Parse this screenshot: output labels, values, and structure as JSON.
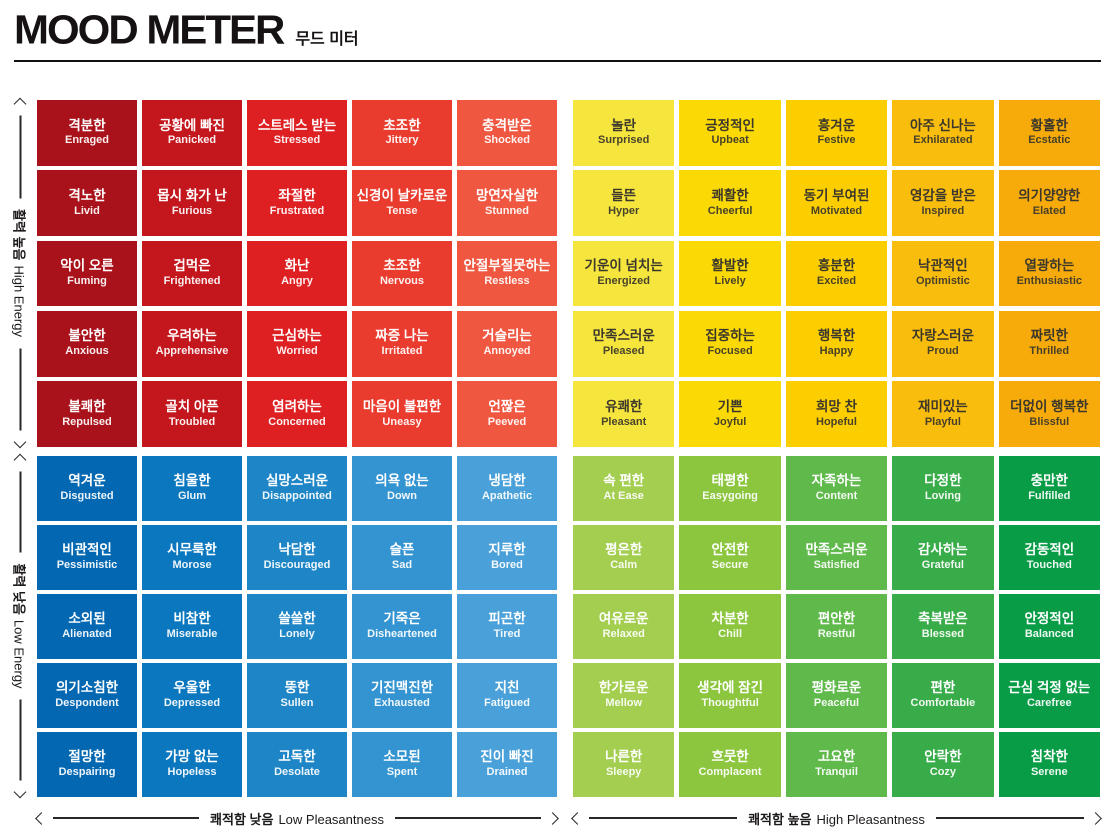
{
  "title": "MOOD METER",
  "subtitle": "무드 미터",
  "axes": {
    "left_top": {
      "kr": "활력 높음",
      "en": "High Energy"
    },
    "left_bottom": {
      "kr": "활력 낮음",
      "en": "Low Energy"
    },
    "bottom_left": {
      "kr": "쾌적함 낮음",
      "en": "Low Pleasantness"
    },
    "bottom_right": {
      "kr": "쾌적함 높음",
      "en": "High Pleasantness"
    }
  },
  "chart_data": {
    "type": "heatmap",
    "title": "MOOD METER 무드 미터",
    "layout": "10x10 mood grid split into four 5x5 quadrants; x-axis = pleasantness (low left, high right), y-axis = energy (high top, low bottom)",
    "quadrants": [
      {
        "id": "high-energy-low-pleasantness",
        "position": "top-left",
        "column_colors": [
          "#A9121B",
          "#C3161D",
          "#DE2023",
          "#E93B2E",
          "#EF5740"
        ],
        "text_color": "#FFFFFF",
        "cells": [
          {
            "kr": "격분한",
            "en": "Enraged"
          },
          {
            "kr": "공황에 빠진",
            "en": "Panicked"
          },
          {
            "kr": "스트레스 받는",
            "en": "Stressed"
          },
          {
            "kr": "초조한",
            "en": "Jittery"
          },
          {
            "kr": "충격받은",
            "en": "Shocked"
          },
          {
            "kr": "격노한",
            "en": "Livid"
          },
          {
            "kr": "몹시 화가 난",
            "en": "Furious"
          },
          {
            "kr": "좌절한",
            "en": "Frustrated"
          },
          {
            "kr": "신경이 날카로운",
            "en": "Tense"
          },
          {
            "kr": "망연자실한",
            "en": "Stunned"
          },
          {
            "kr": "악이 오른",
            "en": "Fuming"
          },
          {
            "kr": "겁먹은",
            "en": "Frightened"
          },
          {
            "kr": "화난",
            "en": "Angry"
          },
          {
            "kr": "초조한",
            "en": "Nervous"
          },
          {
            "kr": "안절부절못하는",
            "en": "Restless"
          },
          {
            "kr": "불안한",
            "en": "Anxious"
          },
          {
            "kr": "우려하는",
            "en": "Apprehensive"
          },
          {
            "kr": "근심하는",
            "en": "Worried"
          },
          {
            "kr": "짜증 나는",
            "en": "Irritated"
          },
          {
            "kr": "거슬리는",
            "en": "Annoyed"
          },
          {
            "kr": "불쾌한",
            "en": "Repulsed"
          },
          {
            "kr": "골치 아픈",
            "en": "Troubled"
          },
          {
            "kr": "염려하는",
            "en": "Concerned"
          },
          {
            "kr": "마음이 불편한",
            "en": "Uneasy"
          },
          {
            "kr": "언짢은",
            "en": "Peeved"
          }
        ]
      },
      {
        "id": "high-energy-high-pleasantness",
        "position": "top-right",
        "column_colors": [
          "#F6E53C",
          "#FBD905",
          "#FCCE00",
          "#F9BD0D",
          "#F6AB0A"
        ],
        "text_color": "#3B372C",
        "cells": [
          {
            "kr": "놀란",
            "en": "Surprised"
          },
          {
            "kr": "긍정적인",
            "en": "Upbeat"
          },
          {
            "kr": "흥겨운",
            "en": "Festive"
          },
          {
            "kr": "아주 신나는",
            "en": "Exhilarated"
          },
          {
            "kr": "황홀한",
            "en": "Ecstatic"
          },
          {
            "kr": "들뜬",
            "en": "Hyper"
          },
          {
            "kr": "쾌활한",
            "en": "Cheerful"
          },
          {
            "kr": "동기 부여된",
            "en": "Motivated"
          },
          {
            "kr": "영감을 받은",
            "en": "Inspired"
          },
          {
            "kr": "의기양양한",
            "en": "Elated"
          },
          {
            "kr": "기운이 넘치는",
            "en": "Energized"
          },
          {
            "kr": "활발한",
            "en": "Lively"
          },
          {
            "kr": "흥분한",
            "en": "Excited"
          },
          {
            "kr": "낙관적인",
            "en": "Optimistic"
          },
          {
            "kr": "열광하는",
            "en": "Enthusiastic"
          },
          {
            "kr": "만족스러운",
            "en": "Pleased"
          },
          {
            "kr": "집중하는",
            "en": "Focused"
          },
          {
            "kr": "행복한",
            "en": "Happy"
          },
          {
            "kr": "자랑스러운",
            "en": "Proud"
          },
          {
            "kr": "짜릿한",
            "en": "Thrilled"
          },
          {
            "kr": "유쾌한",
            "en": "Pleasant"
          },
          {
            "kr": "기쁜",
            "en": "Joyful"
          },
          {
            "kr": "희망 찬",
            "en": "Hopeful"
          },
          {
            "kr": "재미있는",
            "en": "Playful"
          },
          {
            "kr": "더없이 행복한",
            "en": "Blissful"
          }
        ]
      },
      {
        "id": "low-energy-low-pleasantness",
        "position": "bottom-left",
        "column_colors": [
          "#0368B1",
          "#0A77BE",
          "#1E86C7",
          "#3494D1",
          "#4AA1D9"
        ],
        "text_color": "#FFFFFF",
        "cells": [
          {
            "kr": "역겨운",
            "en": "Disgusted"
          },
          {
            "kr": "침울한",
            "en": "Glum"
          },
          {
            "kr": "실망스러운",
            "en": "Disappointed"
          },
          {
            "kr": "의욕 없는",
            "en": "Down"
          },
          {
            "kr": "냉담한",
            "en": "Apathetic"
          },
          {
            "kr": "비관적인",
            "en": "Pessimistic"
          },
          {
            "kr": "시무룩한",
            "en": "Morose"
          },
          {
            "kr": "낙담한",
            "en": "Discouraged"
          },
          {
            "kr": "슬픈",
            "en": "Sad"
          },
          {
            "kr": "지루한",
            "en": "Bored"
          },
          {
            "kr": "소외된",
            "en": "Alienated"
          },
          {
            "kr": "비참한",
            "en": "Miserable"
          },
          {
            "kr": "쓸쓸한",
            "en": "Lonely"
          },
          {
            "kr": "기죽은",
            "en": "Disheartened"
          },
          {
            "kr": "피곤한",
            "en": "Tired"
          },
          {
            "kr": "의기소침한",
            "en": "Despondent"
          },
          {
            "kr": "우울한",
            "en": "Depressed"
          },
          {
            "kr": "뚱한",
            "en": "Sullen"
          },
          {
            "kr": "기진맥진한",
            "en": "Exhausted"
          },
          {
            "kr": "지친",
            "en": "Fatigued"
          },
          {
            "kr": "절망한",
            "en": "Despairing"
          },
          {
            "kr": "가망 없는",
            "en": "Hopeless"
          },
          {
            "kr": "고독한",
            "en": "Desolate"
          },
          {
            "kr": "소모된",
            "en": "Spent"
          },
          {
            "kr": "진이 빠진",
            "en": "Drained"
          }
        ]
      },
      {
        "id": "low-energy-high-pleasantness",
        "position": "bottom-right",
        "column_colors": [
          "#A3CE4F",
          "#8CC63F",
          "#5FB94B",
          "#38AC49",
          "#089C47"
        ],
        "text_color": "#FFFFFF",
        "cells": [
          {
            "kr": "속 편한",
            "en": "At Ease"
          },
          {
            "kr": "태평한",
            "en": "Easygoing"
          },
          {
            "kr": "자족하는",
            "en": "Content"
          },
          {
            "kr": "다정한",
            "en": "Loving"
          },
          {
            "kr": "충만한",
            "en": "Fulfilled"
          },
          {
            "kr": "평온한",
            "en": "Calm"
          },
          {
            "kr": "안전한",
            "en": "Secure"
          },
          {
            "kr": "만족스러운",
            "en": "Satisfied"
          },
          {
            "kr": "감사하는",
            "en": "Grateful"
          },
          {
            "kr": "감동적인",
            "en": "Touched"
          },
          {
            "kr": "여유로운",
            "en": "Relaxed"
          },
          {
            "kr": "차분한",
            "en": "Chill"
          },
          {
            "kr": "편안한",
            "en": "Restful"
          },
          {
            "kr": "축복받은",
            "en": "Blessed"
          },
          {
            "kr": "안정적인",
            "en": "Balanced"
          },
          {
            "kr": "한가로운",
            "en": "Mellow"
          },
          {
            "kr": "생각에 잠긴",
            "en": "Thoughtful"
          },
          {
            "kr": "평화로운",
            "en": "Peaceful"
          },
          {
            "kr": "편한",
            "en": "Comfortable"
          },
          {
            "kr": "근심 걱정 없는",
            "en": "Carefree"
          },
          {
            "kr": "나른한",
            "en": "Sleepy"
          },
          {
            "kr": "흐뭇한",
            "en": "Complacent"
          },
          {
            "kr": "고요한",
            "en": "Tranquil"
          },
          {
            "kr": "안락한",
            "en": "Cozy"
          },
          {
            "kr": "침착한",
            "en": "Serene"
          }
        ]
      }
    ]
  }
}
